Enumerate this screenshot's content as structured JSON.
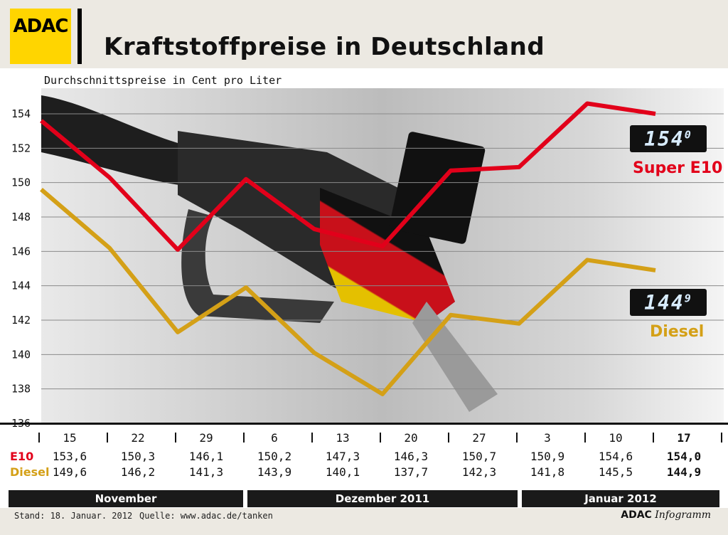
{
  "header": {
    "logo_text": "ADAC",
    "title": "Kraftstoffpreise in Deutschland"
  },
  "colors": {
    "e10": "#e2001a",
    "diesel": "#d4a017",
    "logo_yellow": "#ffd500"
  },
  "chart_data": {
    "type": "line",
    "title": "Kraftstoffpreise in Deutschland",
    "subtitle": "Durchschnittspreise in Cent pro Liter",
    "ylim": [
      135,
      155
    ],
    "yticks": [
      154,
      152,
      150,
      148,
      146,
      144,
      142,
      140,
      138,
      136
    ],
    "categories": [
      "15",
      "22",
      "29",
      "6",
      "13",
      "20",
      "27",
      "3",
      "10",
      "17"
    ],
    "series": [
      {
        "name": "E10",
        "values": [
          153.6,
          150.3,
          146.1,
          150.2,
          147.3,
          146.3,
          150.7,
          150.9,
          154.6,
          154.0
        ]
      },
      {
        "name": "Diesel",
        "values": [
          149.6,
          146.2,
          141.3,
          143.9,
          140.1,
          137.7,
          142.3,
          141.8,
          145.5,
          144.9
        ]
      }
    ],
    "grid": true
  },
  "table": {
    "row_labels": [
      "E10",
      "Diesel"
    ],
    "e10_values": [
      "153,6",
      "150,3",
      "146,1",
      "150,2",
      "147,3",
      "146,3",
      "150,7",
      "150,9",
      "154,6",
      "154,0"
    ],
    "diesel_values": [
      "149,6",
      "146,2",
      "141,3",
      "143,9",
      "140,1",
      "137,7",
      "142,3",
      "141,8",
      "145,5",
      "144,9"
    ],
    "months": [
      "November",
      "Dezember 2011",
      "Januar 2012"
    ]
  },
  "callouts": {
    "e10_display": "154",
    "e10_display_decimal": "0",
    "e10_label": "Super E10",
    "diesel_display": "144",
    "diesel_display_decimal": "9",
    "diesel_label": "Diesel"
  },
  "footer": {
    "stand": "Stand: 18. Januar. 2012",
    "quelle": "Quelle: www.adac.de/tanken",
    "credit_brand": "ADAC",
    "credit_product": "Infogramm"
  }
}
